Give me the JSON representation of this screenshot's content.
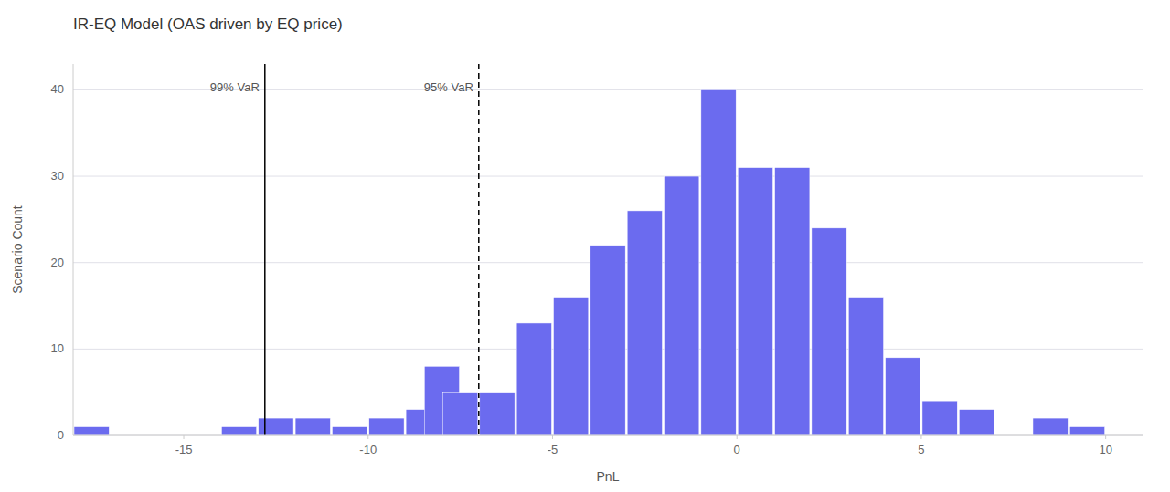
{
  "chart_data": {
    "type": "bar",
    "title": "IR-EQ Model (OAS driven by EQ price)",
    "x_label": "PnL",
    "y_label": "Scenario Count",
    "x": [
      -17.5,
      -13.5,
      -12.5,
      -11.5,
      -10.5,
      -9.5,
      -8.5,
      -8.0,
      -7.5,
      -6.5,
      -5.5,
      -4.5,
      -3.5,
      -2.5,
      -1.5,
      -0.5,
      0.5,
      1.5,
      2.5,
      3.5,
      4.5,
      5.5,
      6.5,
      8.5,
      9.5
    ],
    "values": [
      1,
      1,
      2,
      2,
      1,
      2,
      3,
      8,
      5,
      5,
      13,
      16,
      22,
      26,
      30,
      40,
      31,
      31,
      24,
      16,
      9,
      4,
      3,
      2,
      1
    ],
    "color": "#6b6bef",
    "xlim": [
      -18,
      11
    ],
    "xticks": [
      -15,
      -10,
      -5,
      0,
      5,
      10
    ],
    "ylim": [
      0,
      43
    ],
    "yticks": [
      0,
      10,
      20,
      30,
      40
    ],
    "grid": true,
    "annotations": [
      {
        "x": -12.8,
        "text": "99% VaR",
        "line_style": "solid"
      },
      {
        "x": -7.0,
        "text": "95% VaR",
        "line_style": "dashed"
      }
    ]
  }
}
